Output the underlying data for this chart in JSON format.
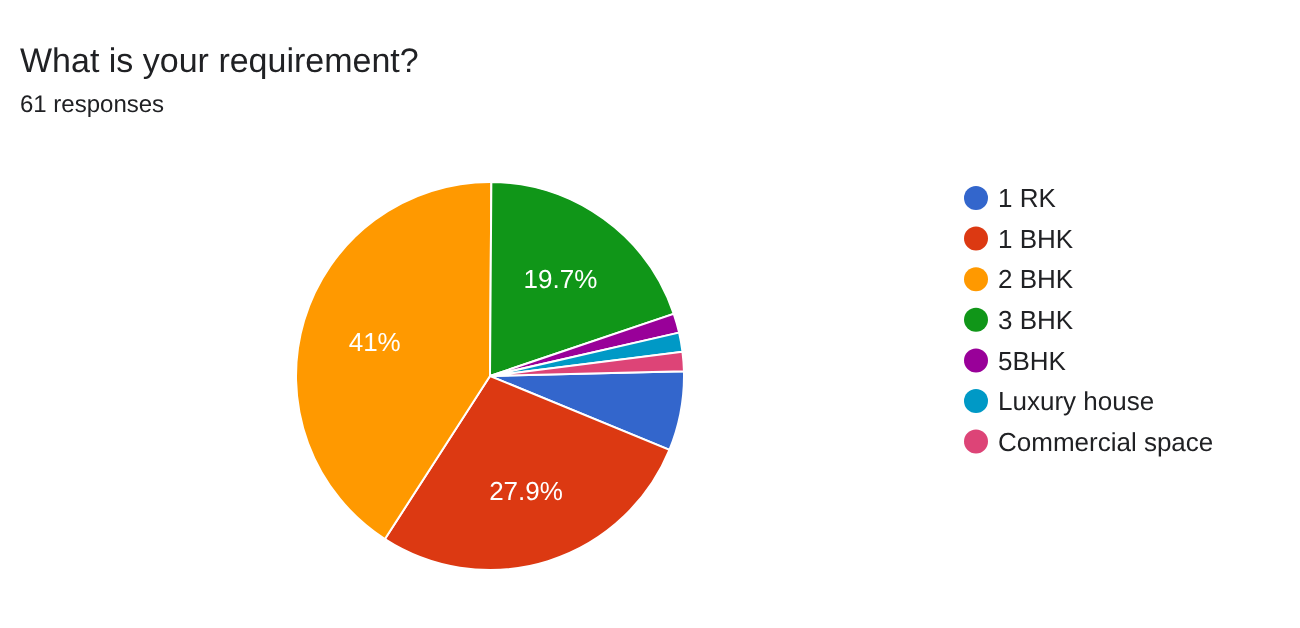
{
  "chart_data": {
    "type": "pie",
    "title": "What is your requirement?",
    "subtitle": "61 responses",
    "categories": [
      "1 RK",
      "1 BHK",
      "2 BHK",
      "3 BHK",
      "5BHK",
      "Luxury house",
      "Commercial space"
    ],
    "values": [
      6.6,
      27.9,
      41,
      19.7,
      1.6,
      1.6,
      1.6
    ],
    "colors": [
      "#3366cc",
      "#dc3912",
      "#ff9900",
      "#109618",
      "#990099",
      "#0099c6",
      "#dd4477"
    ],
    "value_labels": [
      null,
      "27.9%",
      "41%",
      "19.7%",
      null,
      null,
      null
    ],
    "legend": "right"
  }
}
